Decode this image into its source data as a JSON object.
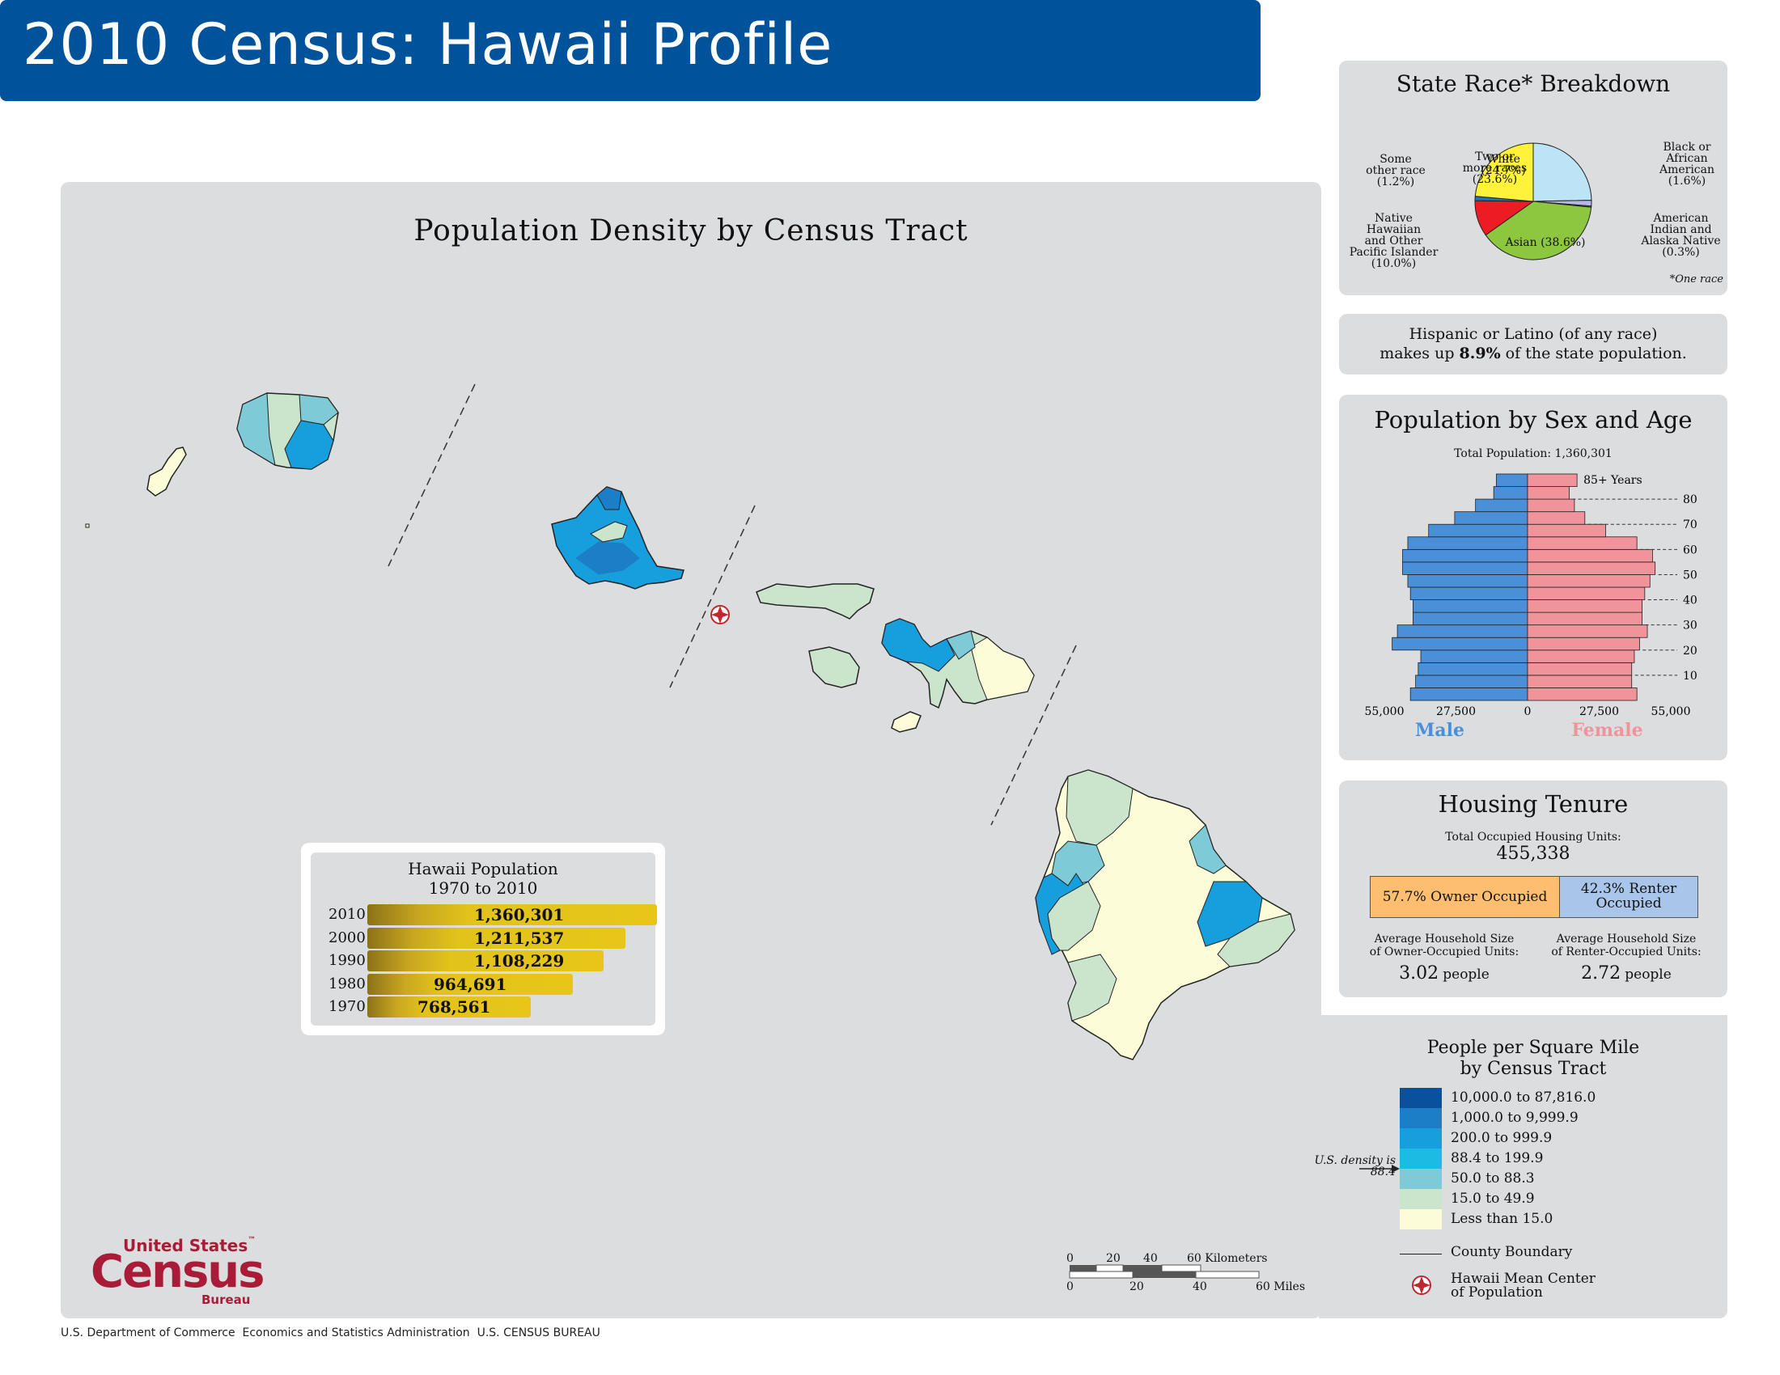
{
  "header": {
    "title": "2010 Census: Hawaii Profile"
  },
  "map": {
    "title": "Population Density by Census Tract"
  },
  "race_breakdown": {
    "title": "State Race* Breakdown",
    "footnote": "*One race",
    "slices": [
      {
        "name": "White",
        "pct": 24.7,
        "label_line1": "White",
        "label_line2": "(24.7%)",
        "color": "#bde3f7"
      },
      {
        "name": "Black or African American",
        "pct": 1.6,
        "label_line1": "Black or",
        "label_line2": "African",
        "label_line3": "American",
        "label_line4": "(1.6%)",
        "color": "#b5b8e6"
      },
      {
        "name": "American Indian and Alaska Native",
        "pct": 0.3,
        "label_line1": "American",
        "label_line2": "Indian and",
        "label_line3": "Alaska Native",
        "label_line4": "(0.3%)",
        "color": "#e8824d"
      },
      {
        "name": "Asian",
        "pct": 38.6,
        "label_line1": "Asian (38.6%)",
        "color": "#8dc63f"
      },
      {
        "name": "Native Hawaiian and Other Pacific Islander",
        "pct": 10.0,
        "label_line1": "Native",
        "label_line2": "Hawaiian",
        "label_line3": "and Other",
        "label_line4": "Pacific Islander",
        "label_line5": "(10.0%)",
        "color": "#ed1c24"
      },
      {
        "name": "Some other race",
        "pct": 1.2,
        "label_line1": "Some",
        "label_line2": "other race",
        "label_line3": "(1.2%)",
        "color": "#1f78b4"
      },
      {
        "name": "Two or more races",
        "pct": 23.6,
        "label_line1": "Two or",
        "label_line2": "more races",
        "label_line3": "(23.6%)",
        "color": "#fff23b"
      }
    ]
  },
  "hispanic": {
    "line1": "Hispanic or Latino (of any race)",
    "line2_pre": "makes up ",
    "line2_bold": "8.9%",
    "line2_post": " of the state population."
  },
  "sex_age": {
    "title": "Population by Sex and Age",
    "total": "Total Population: 1,360,301",
    "top_label": "85+ Years",
    "age_ticks": [
      "80",
      "70",
      "60",
      "50",
      "40",
      "30",
      "20",
      "10"
    ],
    "x_ticks": [
      "55,000",
      "27,500",
      "0",
      "27,500",
      "55,000"
    ],
    "male_label": "Male",
    "female_label": "Female",
    "male_color": "#4a90d9",
    "female_color": "#f0939b",
    "male": [
      45000,
      43000,
      42000,
      41000,
      52000,
      50000,
      44000,
      44000,
      45000,
      46000,
      48000,
      48000,
      46000,
      38000,
      28000,
      20000,
      13000,
      12000
    ],
    "female": [
      42000,
      40000,
      40000,
      41000,
      43000,
      46000,
      44000,
      44000,
      45000,
      47000,
      49000,
      48000,
      42000,
      30000,
      22000,
      18000,
      16000,
      19000
    ]
  },
  "housing": {
    "title": "Housing Tenure",
    "total_label": "Total Occupied Housing Units:",
    "total_value": "455,338",
    "owner_label": "57.7% Owner Occupied",
    "renter_label1": "42.3% Renter",
    "renter_label2": "Occupied",
    "owner_pct": 57.7,
    "renter_pct": 42.3,
    "owner_color": "#fdbe6f",
    "renter_color": "#a9c6ea",
    "avg_owner_label1": "Average Household Size",
    "avg_owner_label2": "of Owner-Occupied Units:",
    "avg_owner_value": "3.02",
    "avg_renter_label1": "Average Household Size",
    "avg_renter_label2": "of Renter-Occupied Units:",
    "avg_renter_value": "2.72",
    "unit": "people"
  },
  "population_history": {
    "title1": "Hawaii Population",
    "title2": "1970 to 2010",
    "rows": [
      {
        "year": "2010",
        "value": 1360301,
        "label": "1,360,301"
      },
      {
        "year": "2000",
        "value": 1211537,
        "label": "1,211,537"
      },
      {
        "year": "1990",
        "value": 1108229,
        "label": "1,108,229"
      },
      {
        "year": "1980",
        "value": 964691,
        "label": "964,691"
      },
      {
        "year": "1970",
        "value": 768561,
        "label": "768,561"
      }
    ]
  },
  "legend": {
    "title1": "People per Square Mile",
    "title2": "by Census Tract",
    "classes": [
      {
        "label": "10,000.0 to 87,816.0",
        "color": "#0a519c"
      },
      {
        "label": "1,000.0 to 9,999.9",
        "color": "#1c7ec6"
      },
      {
        "label": "200.0 to 999.9",
        "color": "#179edd"
      },
      {
        "label": "88.4 to 199.9",
        "color": "#1cbbe4"
      },
      {
        "label": "50.0 to 88.3",
        "color": "#7ecad6"
      },
      {
        "label": "15.0 to 49.9",
        "color": "#cbe5cc"
      },
      {
        "label": "Less than 15.0",
        "color": "#fdfcd9"
      }
    ],
    "us_density_line1": "U.S. density is",
    "us_density_line2": "88.4",
    "county_boundary": "County Boundary",
    "mean_center1": "Hawaii Mean Center",
    "mean_center2": "of Population"
  },
  "scale": {
    "km_ticks": [
      "0",
      "20",
      "40",
      "60 Kilometers"
    ],
    "mi_ticks": [
      "0",
      "20",
      "40",
      "60 Miles"
    ]
  },
  "logo": {
    "line1": "United States",
    "tm": "™",
    "line2": "Census",
    "line3": "Bureau"
  },
  "footer": {
    "text": "U.S. Department of Commerce  Economics and Statistics Administration  U.S. CENSUS BUREAU"
  }
}
